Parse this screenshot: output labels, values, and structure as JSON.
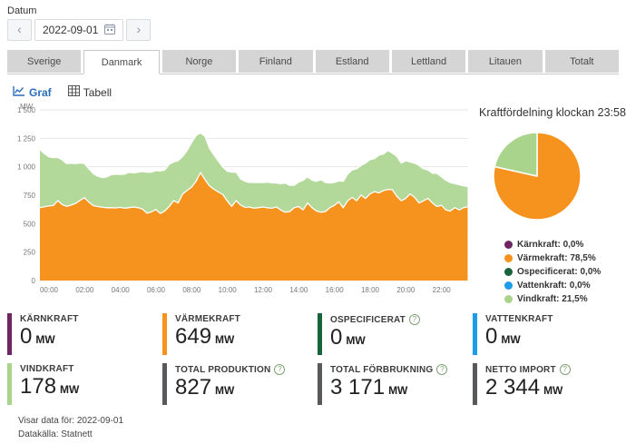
{
  "header": {
    "datum_label": "Datum",
    "date_value": "2022-09-01",
    "prev_glyph": "‹",
    "next_glyph": "›"
  },
  "tabs": [
    {
      "label": "Sverige",
      "active": false
    },
    {
      "label": "Danmark",
      "active": true
    },
    {
      "label": "Norge",
      "active": false
    },
    {
      "label": "Finland",
      "active": false
    },
    {
      "label": "Estland",
      "active": false
    },
    {
      "label": "Lettland",
      "active": false
    },
    {
      "label": "Litauen",
      "active": false
    },
    {
      "label": "Totalt",
      "active": false
    }
  ],
  "view_toggle": {
    "graf_label": "Graf",
    "tabell_label": "Tabell"
  },
  "chart_data": [
    {
      "type": "area",
      "stacked": true,
      "ylabel": "MW",
      "ylim": [
        0,
        1500
      ],
      "yticks": [
        0,
        250,
        500,
        750,
        1000,
        1250,
        1500
      ],
      "ytick_labels": [
        "0",
        "250",
        "500",
        "750",
        "1 000",
        "1 250",
        "1 500"
      ],
      "xtick_hours": [
        0,
        2,
        4,
        6,
        8,
        10,
        12,
        14,
        16,
        18,
        20,
        22
      ],
      "xtick_labels": [
        "00:00",
        "02:00",
        "04:00",
        "06:00",
        "08:00",
        "10:00",
        "12:00",
        "14:00",
        "16:00",
        "18:00",
        "20:00",
        "22:00"
      ],
      "x_hours": [
        0,
        0.25,
        0.5,
        0.75,
        1,
        1.25,
        1.5,
        1.75,
        2,
        2.25,
        2.5,
        2.75,
        3,
        3.25,
        3.5,
        3.75,
        4,
        4.25,
        4.5,
        4.75,
        5,
        5.25,
        5.5,
        5.75,
        6,
        6.25,
        6.5,
        6.75,
        7,
        7.25,
        7.5,
        7.75,
        8,
        8.25,
        8.5,
        8.75,
        9,
        9.25,
        9.5,
        9.75,
        10,
        10.25,
        10.5,
        10.75,
        11,
        11.25,
        11.5,
        11.75,
        12,
        12.25,
        12.5,
        12.75,
        13,
        13.25,
        13.5,
        13.75,
        14,
        14.25,
        14.5,
        14.75,
        15,
        15.25,
        15.5,
        15.75,
        16,
        16.25,
        16.5,
        16.75,
        17,
        17.25,
        17.5,
        17.75,
        18,
        18.25,
        18.5,
        18.75,
        19,
        19.25,
        19.5,
        19.75,
        20,
        20.25,
        20.5,
        20.75,
        21,
        21.25,
        21.5,
        21.75,
        22,
        22.25,
        22.5,
        22.75,
        23,
        23.25,
        23.5,
        23.75,
        23.97
      ],
      "series": [
        {
          "name": "Värmekraft",
          "color": "#F6921E",
          "values": [
            640,
            648,
            655,
            660,
            702,
            668,
            652,
            663,
            678,
            705,
            728,
            688,
            658,
            650,
            645,
            640,
            641,
            638,
            643,
            636,
            641,
            646,
            640,
            628,
            592,
            603,
            625,
            590,
            612,
            652,
            702,
            682,
            760,
            792,
            822,
            872,
            948,
            888,
            832,
            802,
            778,
            756,
            700,
            652,
            702,
            662,
            642,
            646,
            636,
            641,
            646,
            639,
            635,
            646,
            620,
            601,
            606,
            641,
            650,
            621,
            681,
            641,
            611,
            601,
            606,
            641,
            661,
            691,
            641,
            701,
            731,
            701,
            751,
            721,
            761,
            781,
            771,
            791,
            801,
            799,
            741,
            701,
            721,
            761,
            731,
            681,
            701,
            721,
            681,
            651,
            661,
            621,
            611,
            641,
            621,
            641,
            649
          ]
        },
        {
          "name": "Vindkraft",
          "color": "#B2D89A",
          "values": [
            510,
            468,
            432,
            420,
            380,
            392,
            376,
            368,
            350,
            328,
            300,
            292,
            280,
            266,
            260,
            272,
            290,
            296,
            290,
            300,
            310,
            301,
            312,
            330,
            360,
            350,
            341,
            372,
            360,
            371,
            340,
            372,
            331,
            352,
            391,
            402,
            350,
            381,
            331,
            301,
            271,
            241,
            261,
            301,
            251,
            231,
            229,
            216,
            226,
            221,
            216,
            226,
            224,
            211,
            231,
            256,
            231,
            196,
            216,
            261,
            231,
            241,
            261,
            286,
            256,
            216,
            201,
            186,
            231,
            236,
            241,
            281,
            261,
            311,
            301,
            291,
            331,
            321,
            341,
            321,
            351,
            331,
            331,
            281,
            301,
            331,
            281,
            251,
            261,
            291,
            251,
            261,
            251,
            211,
            221,
            191,
            178
          ]
        }
      ]
    },
    {
      "type": "pie",
      "title": "Kraftfördelning klockan 23:58",
      "labels": [
        "Kärnkraft",
        "Värmekraft",
        "Ospecificerat",
        "Vattenkraft",
        "Vindkraft"
      ],
      "values": [
        0.0,
        78.5,
        0.0,
        0.0,
        21.5
      ],
      "colors": [
        "#6E2662",
        "#F6921E",
        "#17633A",
        "#1E9BE9",
        "#A9D48C"
      ],
      "legend": [
        {
          "text": "Kärnkraft: 0,0%",
          "color": "#6E2662"
        },
        {
          "text": "Värmekraft: 78,5%",
          "color": "#F6921E"
        },
        {
          "text": "Ospecificerat: 0,0%",
          "color": "#17633A"
        },
        {
          "text": "Vattenkraft: 0,0%",
          "color": "#1E9BE9"
        },
        {
          "text": "Vindkraft: 21,5%",
          "color": "#A9D48C"
        }
      ]
    }
  ],
  "cards": [
    {
      "label": "KÄRNKRAFT",
      "value": "0",
      "unit": "MW",
      "color": "#6E2662",
      "has_help": false
    },
    {
      "label": "VÄRMEKRAFT",
      "value": "649",
      "unit": "MW",
      "color": "#F6921E",
      "has_help": false
    },
    {
      "label": "OSPECIFICERAT",
      "value": "0",
      "unit": "MW",
      "color": "#17633A",
      "has_help": true
    },
    {
      "label": "VATTENKRAFT",
      "value": "0",
      "unit": "MW",
      "color": "#1E9BE9",
      "has_help": false
    },
    {
      "label": "VINDKRAFT",
      "value": "178",
      "unit": "MW",
      "color": "#A9D48C",
      "has_help": false
    },
    {
      "label": "TOTAL PRODUKTION",
      "value": "827",
      "unit": "MW",
      "color": "#58595B",
      "has_help": true
    },
    {
      "label": "TOTAL FÖRBRUKNING",
      "value": "3 171",
      "unit": "MW",
      "color": "#58595B",
      "has_help": true
    },
    {
      "label": "NETTO IMPORT",
      "value": "2 344",
      "unit": "MW",
      "color": "#58595B",
      "has_help": true
    }
  ],
  "help_icon_glyph": "?",
  "footer": {
    "line1": "Visar data för: 2022-09-01",
    "line2": "Datakälla: Statnett"
  },
  "colors": {
    "link_blue": "#2A6EBB",
    "tab_gray": "#d5d5d5",
    "grid_line": "#e6e6e6"
  }
}
